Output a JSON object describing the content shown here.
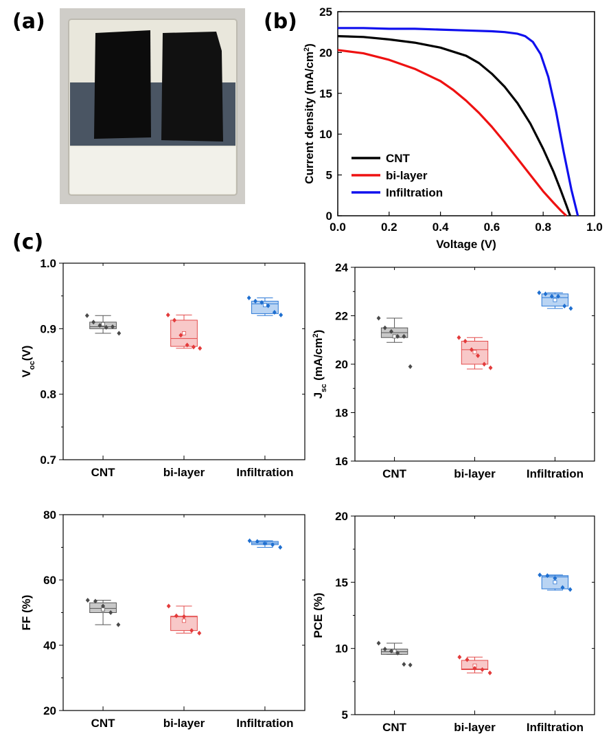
{
  "labels": {
    "a": "(a)",
    "b": "(b)",
    "c": "(c)"
  },
  "colors": {
    "CNT": "#000000",
    "bi-layer": "#ee1111",
    "Infiltration": "#1010ee",
    "box_cnt": "#8c8c8c",
    "box_bi": "#ee5555",
    "box_inf": "#2a78d6"
  },
  "chart_data": [
    {
      "panel": "b",
      "type": "line",
      "xlabel": "Voltage (V)",
      "ylabel": "Current density (mA/cm2)",
      "xlim": [
        0,
        1.0
      ],
      "ylim": [
        0,
        25
      ],
      "xticks": [
        "0.0",
        "0.2",
        "0.4",
        "0.6",
        "0.8",
        "1.0"
      ],
      "yticks": [
        "0",
        "5",
        "10",
        "15",
        "20",
        "25"
      ],
      "legend": "bottom-left",
      "series": [
        {
          "name": "CNT",
          "x": [
            0,
            0.1,
            0.2,
            0.3,
            0.4,
            0.5,
            0.55,
            0.6,
            0.65,
            0.7,
            0.75,
            0.8,
            0.84,
            0.87,
            0.89,
            0.905
          ],
          "y": [
            22.0,
            21.9,
            21.6,
            21.2,
            20.6,
            19.6,
            18.7,
            17.4,
            15.8,
            13.8,
            11.3,
            8.2,
            5.4,
            3.0,
            1.3,
            0
          ]
        },
        {
          "name": "bi-layer",
          "x": [
            0,
            0.1,
            0.2,
            0.3,
            0.4,
            0.45,
            0.5,
            0.55,
            0.6,
            0.65,
            0.7,
            0.75,
            0.8,
            0.84,
            0.87,
            0.89
          ],
          "y": [
            20.3,
            19.9,
            19.1,
            18.0,
            16.5,
            15.4,
            14.1,
            12.6,
            10.9,
            9.0,
            7.0,
            5.0,
            3.0,
            1.6,
            0.6,
            0
          ]
        },
        {
          "name": "Infiltration",
          "x": [
            0,
            0.1,
            0.2,
            0.3,
            0.4,
            0.5,
            0.6,
            0.65,
            0.7,
            0.73,
            0.76,
            0.79,
            0.82,
            0.85,
            0.88,
            0.91,
            0.935
          ],
          "y": [
            23.0,
            23.0,
            22.9,
            22.9,
            22.8,
            22.7,
            22.6,
            22.5,
            22.3,
            22.0,
            21.3,
            19.8,
            17.0,
            12.8,
            7.8,
            3.2,
            0
          ]
        }
      ]
    },
    {
      "panel": "c1",
      "type": "box",
      "ylabel": "Voc(V)",
      "ylim": [
        0.7,
        1.0
      ],
      "yticks": [
        "0.7",
        "0.8",
        "0.9",
        "1.0"
      ],
      "categories": [
        "CNT",
        "bi-layer",
        "Infiltration"
      ],
      "boxes": [
        {
          "q1": 0.9,
          "median": 0.903,
          "q3": 0.91,
          "min": 0.893,
          "max": 0.92,
          "mean": 0.907,
          "points": [
            0.92,
            0.91,
            0.905,
            0.902,
            0.903,
            0.893
          ]
        },
        {
          "q1": 0.873,
          "median": 0.885,
          "q3": 0.913,
          "min": 0.87,
          "max": 0.921,
          "mean": 0.893,
          "points": [
            0.921,
            0.913,
            0.89,
            0.875,
            0.872,
            0.87
          ]
        },
        {
          "q1": 0.923,
          "median": 0.938,
          "q3": 0.942,
          "min": 0.92,
          "max": 0.947,
          "mean": 0.936,
          "points": [
            0.947,
            0.942,
            0.94,
            0.935,
            0.925,
            0.921
          ]
        }
      ]
    },
    {
      "panel": "c2",
      "type": "box",
      "ylabel": "Jsc (mA/cm2)",
      "ylim": [
        16,
        24
      ],
      "yticks": [
        "16",
        "18",
        "20",
        "22",
        "24"
      ],
      "categories": [
        "CNT",
        "bi-layer",
        "Infiltration"
      ],
      "boxes": [
        {
          "q1": 21.1,
          "median": 21.3,
          "q3": 21.5,
          "min": 20.9,
          "max": 21.9,
          "mean": 21.15,
          "points": [
            21.9,
            21.5,
            21.35,
            21.15,
            21.15,
            19.9
          ]
        },
        {
          "q1": 20.0,
          "median": 20.6,
          "q3": 20.95,
          "min": 19.8,
          "max": 21.1,
          "mean": 20.5,
          "points": [
            21.1,
            20.95,
            20.6,
            20.35,
            20.0,
            19.85
          ]
        },
        {
          "q1": 22.4,
          "median": 22.75,
          "q3": 22.9,
          "min": 22.3,
          "max": 22.95,
          "mean": 22.65,
          "points": [
            22.95,
            22.9,
            22.8,
            22.8,
            22.4,
            22.3
          ]
        }
      ]
    },
    {
      "panel": "c3",
      "type": "box",
      "ylabel": "FF (%)",
      "ylim": [
        20,
        80
      ],
      "yticks": [
        "20",
        "40",
        "60",
        "80"
      ],
      "categories": [
        "CNT",
        "bi-layer",
        "Infiltration"
      ],
      "boxes": [
        {
          "q1": 50.0,
          "median": 51.3,
          "q3": 53.0,
          "min": 46.3,
          "max": 53.8,
          "mean": 51.0,
          "points": [
            53.8,
            53.5,
            52.0,
            50.0,
            46.3
          ]
        },
        {
          "q1": 44.5,
          "median": 48.7,
          "q3": 48.9,
          "min": 43.7,
          "max": 52.0,
          "mean": 47.5,
          "points": [
            52.0,
            49.0,
            48.8,
            44.5,
            43.7
          ]
        },
        {
          "q1": 70.8,
          "median": 71.3,
          "q3": 71.8,
          "min": 70.0,
          "max": 72.0,
          "mean": 71.3,
          "points": [
            72.0,
            71.8,
            71.2,
            70.8,
            70.0
          ]
        }
      ]
    },
    {
      "panel": "c4",
      "type": "box",
      "ylabel": "PCE (%)",
      "ylim": [
        5,
        20
      ],
      "yticks": [
        "5",
        "10",
        "15",
        "20"
      ],
      "categories": [
        "CNT",
        "bi-layer",
        "Infiltration"
      ],
      "boxes": [
        {
          "q1": 9.55,
          "median": 9.75,
          "q3": 9.95,
          "min": 9.55,
          "max": 10.4,
          "mean": 9.8,
          "points": [
            10.4,
            9.95,
            9.8,
            9.65,
            8.8,
            8.75
          ]
        },
        {
          "q1": 8.4,
          "median": 8.45,
          "q3": 9.1,
          "min": 8.15,
          "max": 9.35,
          "mean": 8.7,
          "points": [
            9.35,
            9.15,
            8.5,
            8.4,
            8.15
          ]
        },
        {
          "q1": 14.5,
          "median": 15.4,
          "q3": 15.5,
          "min": 14.4,
          "max": 15.55,
          "mean": 15.0,
          "points": [
            15.55,
            15.5,
            15.3,
            14.6,
            14.45
          ]
        }
      ]
    }
  ]
}
